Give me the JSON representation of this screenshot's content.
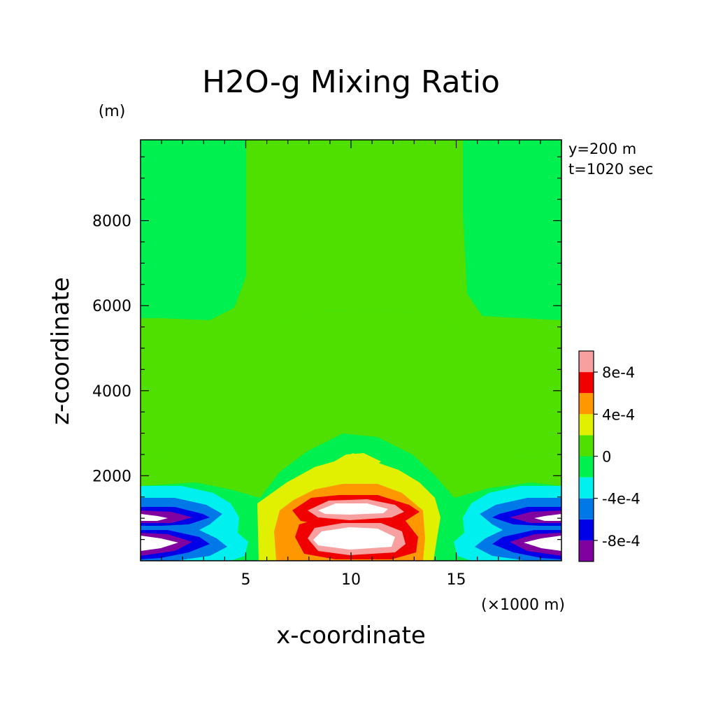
{
  "chart_data": {
    "type": "heatmap",
    "title": "H2O-g Mixing Ratio",
    "xlabel": "x-coordinate",
    "ylabel": "z-coordinate",
    "x_unit": "(×1000 m)",
    "y_unit": "(m)",
    "annotations": [
      "y=200 m",
      "t=1020 sec"
    ],
    "xlim": [
      0,
      20
    ],
    "ylim": [
      0,
      9900
    ],
    "x_ticks": [
      5,
      10,
      15
    ],
    "y_ticks": [
      2000,
      4000,
      6000,
      8000
    ],
    "x_tick_labels": [
      "5",
      "10",
      "15"
    ],
    "y_tick_labels": [
      "2000",
      "4000",
      "6000",
      "8000"
    ],
    "grid": false,
    "colorbar": {
      "position": "right",
      "labels": [
        "8e-4",
        "4e-4",
        "0",
        "-4e-4",
        "-8e-4"
      ],
      "label_values": [
        0.0008,
        0.0004,
        0,
        -0.0004,
        -0.0008
      ],
      "levels": [
        -0.001,
        -0.0008,
        -0.0006,
        -0.0004,
        -0.0002,
        0,
        0.0002,
        0.0004,
        0.0006,
        0.0008,
        0.001
      ],
      "colors": [
        "#8000a0",
        "#0000e8",
        "#0078e8",
        "#00f0f0",
        "#00f050",
        "#50e000",
        "#e0f000",
        "#ff9800",
        "#f00000",
        "#f8a0a0"
      ]
    },
    "regions": [
      {
        "name": "upper-left background",
        "range": "-2e-4 to 0",
        "color": "#00f050"
      },
      {
        "name": "central updraft column",
        "range": "0 to 2e-4",
        "color": "#50e000"
      },
      {
        "name": "central moist core",
        "range": "> 1e-3",
        "color": "#ffffff"
      },
      {
        "name": "edge dry bands",
        "range": "< -1e-3",
        "color": "#ffffff"
      }
    ]
  }
}
